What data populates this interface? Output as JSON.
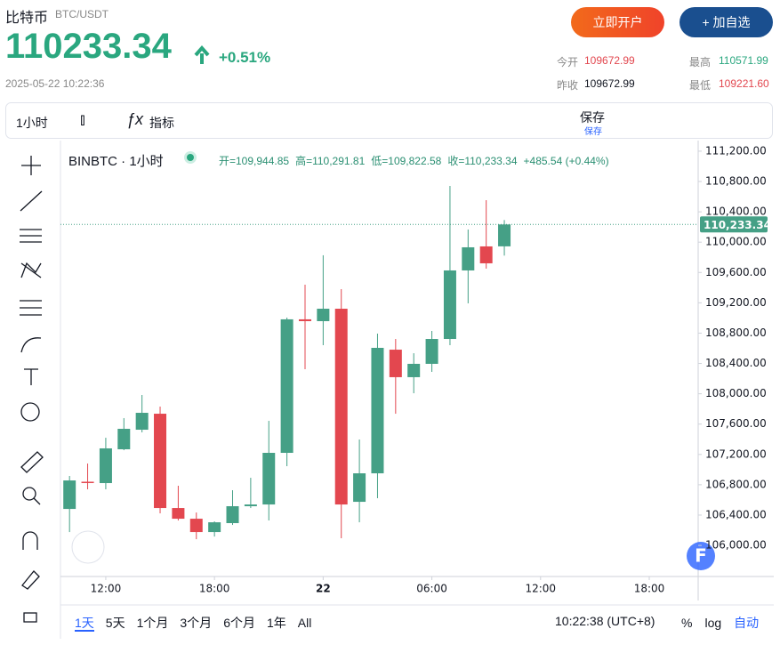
{
  "header": {
    "name": "比特币",
    "pair": "BTC/USDT",
    "price": "110233.34",
    "change": "+0.51%",
    "timestamp": "2025-05-22 10:22:36",
    "buttons": [
      "立即开户",
      "+ 加自选"
    ],
    "stats": [
      {
        "label": "今开",
        "value": "109672.99"
      },
      {
        "label": "最高",
        "value": "110571.99"
      },
      {
        "label": "昨收",
        "value": "109672.99"
      },
      {
        "label": "最低",
        "value": "109221.60"
      }
    ]
  },
  "toolbar": {
    "interval": "1小时",
    "indicators": "指标",
    "save": "保存",
    "save_sub": "保存"
  },
  "chart_data": {
    "type": "candlestick",
    "title": "BINBTC · 1小时",
    "legend_ohlc": [
      "开=109,944.85",
      "高=110,291.81",
      "低=109,822.58",
      "收=110,233.34",
      "+485.54 (+0.44%)"
    ],
    "open": [
      106481,
      106840,
      106822,
      107268,
      107526,
      107737,
      106493,
      106352,
      106176,
      106294,
      106517,
      106540,
      107221,
      108982,
      108958,
      109122,
      106575,
      106951,
      108582,
      108219,
      108395,
      108723,
      109627,
      109944,
      109944.85
    ],
    "high": [
      106916,
      107080,
      107420,
      107679,
      107984,
      107831,
      106787,
      106434,
      106317,
      106728,
      106892,
      107643,
      109005,
      109439,
      109827,
      109381,
      107397,
      108794,
      108723,
      108535,
      108829,
      110742,
      110167,
      110554,
      110291.81
    ],
    "low": [
      106176,
      106740,
      106740,
      107256,
      107491,
      106423,
      106329,
      106082,
      106117,
      106270,
      106493,
      106329,
      107045,
      108324,
      108641,
      106094,
      106305,
      106622,
      107737,
      108007,
      108289,
      108641,
      109193,
      109651,
      109822.58
    ],
    "close": [
      106857,
      106830,
      107280,
      107538,
      107749,
      106493,
      106352,
      106176,
      106305,
      106517,
      106540,
      107221,
      108982,
      108958,
      109122,
      106540,
      106951,
      108606,
      108219,
      108395,
      108723,
      109627,
      109932,
      109721,
      110233.34
    ],
    "up_color": "#45a086",
    "down_color": "#e3474f",
    "last_price": {
      "value": 110233.34,
      "label": "110,233.34"
    },
    "xlim": [
      -0.5,
      34.7
    ],
    "xticks": [
      {
        "value": 2,
        "label": "12:00"
      },
      {
        "value": 8,
        "label": "18:00"
      },
      {
        "value": 14,
        "label": "22"
      },
      {
        "value": 20,
        "label": "06:00"
      },
      {
        "value": 26,
        "label": "12:00"
      },
      {
        "value": 32,
        "label": "18:00"
      }
    ],
    "ylim": [
      105590,
      111340
    ],
    "yticks": [
      {
        "value": 106000,
        "label": "106,000.00"
      },
      {
        "value": 106400,
        "label": "106,400.00"
      },
      {
        "value": 106800,
        "label": "106,800.00"
      },
      {
        "value": 107200,
        "label": "107,200.00"
      },
      {
        "value": 107600,
        "label": "107,600.00"
      },
      {
        "value": 108000,
        "label": "108,000.00"
      },
      {
        "value": 108400,
        "label": "108,400.00"
      },
      {
        "value": 108800,
        "label": "108,800.00"
      },
      {
        "value": 109200,
        "label": "109,200.00"
      },
      {
        "value": 109600,
        "label": "109,600.00"
      },
      {
        "value": 110000,
        "label": "110,000.00"
      },
      {
        "value": 110400,
        "label": "110,400.00"
      },
      {
        "value": 110800,
        "label": "110,800.00"
      },
      {
        "value": 111200,
        "label": "111,200.00"
      }
    ],
    "grid": false
  },
  "footer": {
    "ranges": [
      "1天",
      "5天",
      "1个月",
      "3个月",
      "6个月",
      "1年",
      "All"
    ],
    "clock": "10:22:38 (UTC+8)",
    "options": [
      "%",
      "log",
      "自动"
    ]
  }
}
